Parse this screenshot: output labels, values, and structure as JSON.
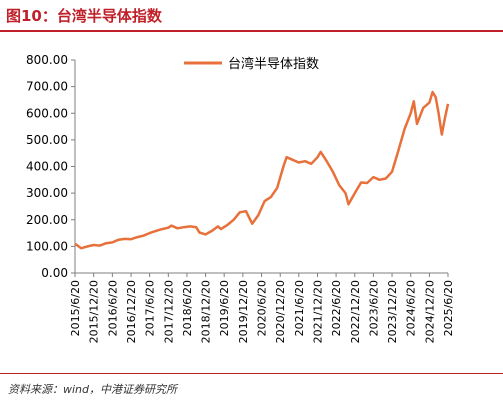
{
  "figure": {
    "title": "图10：台湾半导体指数",
    "source": "资料来源：wind，中港证券研究所"
  },
  "chart_data": {
    "type": "line",
    "title": "",
    "xlabel": "",
    "ylabel": "",
    "ylim": [
      0,
      800
    ],
    "yticks": [
      "800.00",
      "700.00",
      "600.00",
      "500.00",
      "400.00",
      "300.00",
      "200.00",
      "100.00",
      "0.00"
    ],
    "xticks": [
      "2015/6/20",
      "2015/12/20",
      "2016/6/20",
      "2016/12/20",
      "2017/6/20",
      "2017/12/20",
      "2018/6/20",
      "2018/12/20",
      "2019/6/20",
      "2019/12/20",
      "2020/6/20",
      "2020/12/20",
      "2021/6/20",
      "2021/12/20",
      "2022/6/20",
      "2022/12/20",
      "2023/6/20",
      "2023/12/20",
      "2024/6/20",
      "2024/12/20",
      "2025/6/20"
    ],
    "xlim": [
      "2015/6/20",
      "2025/6/20"
    ],
    "grid": false,
    "legend_position": "top-center",
    "color": "#e8703a",
    "series": [
      {
        "name": "台湾半导体指数",
        "points": [
          [
            "2015/6/20",
            110
          ],
          [
            "2015/8/20",
            93
          ],
          [
            "2015/10/20",
            100
          ],
          [
            "2015/12/20",
            105
          ],
          [
            "2016/2/20",
            103
          ],
          [
            "2016/4/20",
            112
          ],
          [
            "2016/6/20",
            115
          ],
          [
            "2016/8/20",
            125
          ],
          [
            "2016/10/20",
            128
          ],
          [
            "2016/12/20",
            127
          ],
          [
            "2017/2/20",
            135
          ],
          [
            "2017/4/20",
            140
          ],
          [
            "2017/6/20",
            150
          ],
          [
            "2017/8/20",
            158
          ],
          [
            "2017/10/20",
            165
          ],
          [
            "2017/12/20",
            170
          ],
          [
            "2018/1/20",
            178
          ],
          [
            "2018/3/20",
            168
          ],
          [
            "2018/5/20",
            172
          ],
          [
            "2018/7/20",
            175
          ],
          [
            "2018/9/20",
            172
          ],
          [
            "2018/10/20",
            152
          ],
          [
            "2018/12/20",
            145
          ],
          [
            "2019/2/20",
            158
          ],
          [
            "2019/4/20",
            175
          ],
          [
            "2019/5/20",
            165
          ],
          [
            "2019/7/20",
            180
          ],
          [
            "2019/9/20",
            200
          ],
          [
            "2019/11/20",
            228
          ],
          [
            "2020/1/20",
            232
          ],
          [
            "2020/3/20",
            185
          ],
          [
            "2020/5/20",
            218
          ],
          [
            "2020/7/20",
            270
          ],
          [
            "2020/9/20",
            285
          ],
          [
            "2020/11/20",
            320
          ],
          [
            "2021/1/20",
            400
          ],
          [
            "2021/2/20",
            435
          ],
          [
            "2021/4/20",
            425
          ],
          [
            "2021/6/20",
            415
          ],
          [
            "2021/8/20",
            420
          ],
          [
            "2021/10/20",
            410
          ],
          [
            "2021/12/20",
            435
          ],
          [
            "2022/1/20",
            455
          ],
          [
            "2022/3/20",
            420
          ],
          [
            "2022/5/20",
            380
          ],
          [
            "2022/7/20",
            330
          ],
          [
            "2022/9/20",
            300
          ],
          [
            "2022/10/20",
            258
          ],
          [
            "2022/12/20",
            300
          ],
          [
            "2023/2/20",
            340
          ],
          [
            "2023/4/20",
            338
          ],
          [
            "2023/6/20",
            360
          ],
          [
            "2023/8/20",
            350
          ],
          [
            "2023/10/20",
            355
          ],
          [
            "2023/12/20",
            380
          ],
          [
            "2024/2/20",
            460
          ],
          [
            "2024/4/20",
            540
          ],
          [
            "2024/6/20",
            600
          ],
          [
            "2024/7/20",
            645
          ],
          [
            "2024/8/20",
            560
          ],
          [
            "2024/10/20",
            620
          ],
          [
            "2024/12/20",
            640
          ],
          [
            "2025/1/20",
            680
          ],
          [
            "2025/2/20",
            660
          ],
          [
            "2025/3/20",
            600
          ],
          [
            "2025/4/20",
            520
          ],
          [
            "2025/5/20",
            580
          ],
          [
            "2025/6/20",
            635
          ]
        ]
      }
    ]
  }
}
